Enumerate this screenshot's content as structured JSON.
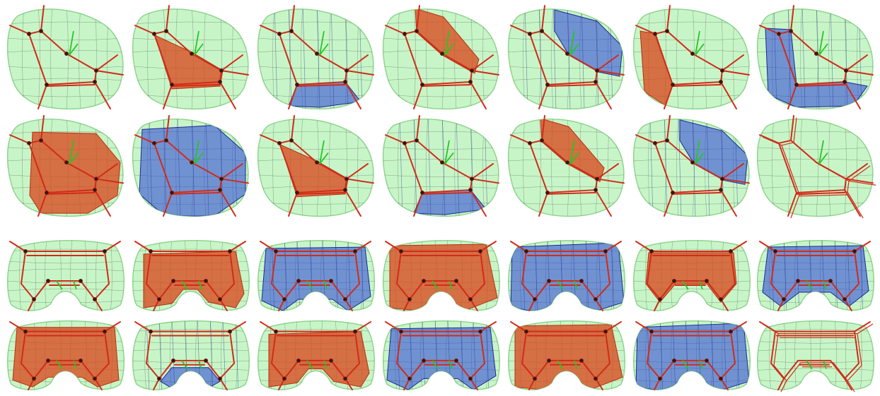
{
  "palette": {
    "background": "#ffffff",
    "volume_fill": "#c8f5c8",
    "volume_stroke": "#8fd48f",
    "skeleton": "#d12b18",
    "skeleton_dark": "#8a1a0c",
    "axis": "#22c822",
    "node": "#2a1a14",
    "region_red": "#d9491f",
    "region_red_dark": "#b8300f",
    "region_blue": "#2a40d8",
    "region_blue_dark": "#1a2898"
  },
  "figure": {
    "groups": [
      {
        "shape": "blob",
        "rows": [
          [
            "none",
            "red",
            "blue",
            "red",
            "blue",
            "red",
            "blue"
          ],
          [
            "red",
            "blue",
            "red",
            "blue",
            "red",
            "blue",
            "none"
          ]
        ]
      },
      {
        "shape": "arch",
        "rows": [
          [
            "none",
            "red",
            "blue",
            "red",
            "blue",
            "red",
            "blue"
          ],
          [
            "red",
            "blue",
            "red",
            "blue",
            "red",
            "blue",
            "none"
          ]
        ]
      }
    ]
  }
}
